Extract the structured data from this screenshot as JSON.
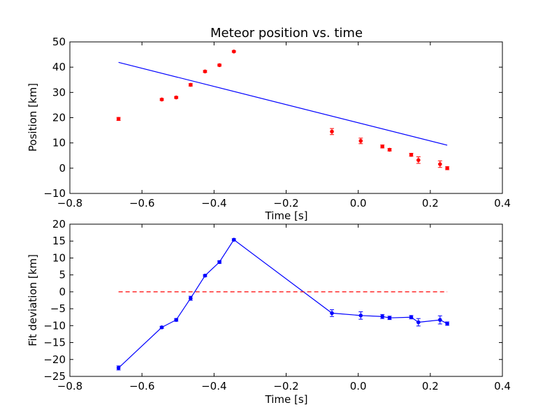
{
  "chart_data": [
    {
      "type": "scatter",
      "title": "Meteor position vs. time",
      "xlabel": "Time [s]",
      "ylabel": "Position [km]",
      "xlim": [
        -0.8,
        0.4
      ],
      "ylim": [
        -10,
        50
      ],
      "xticks": [
        "−0.8",
        "−0.6",
        "−0.4",
        "−0.2",
        "0.0",
        "0.2",
        "0.4"
      ],
      "yticks": [
        "−10",
        "0",
        "10",
        "20",
        "30",
        "40",
        "50"
      ],
      "grid": false,
      "colors": {
        "points": "#ff0000",
        "fit": "#0000ff"
      },
      "series": [
        {
          "style": "points-with-errorbars",
          "x": [
            -0.665,
            -0.545,
            -0.505,
            -0.465,
            -0.425,
            -0.385,
            -0.345,
            -0.073,
            0.007,
            0.067,
            0.087,
            0.147,
            0.167,
            0.227,
            0.247
          ],
          "y": [
            19.5,
            27.2,
            28.0,
            33.0,
            38.3,
            40.8,
            46.2,
            14.5,
            10.8,
            8.6,
            7.3,
            5.3,
            3.2,
            1.6,
            0.0
          ],
          "yerr": [
            0.6,
            0.4,
            0.4,
            0.5,
            0.4,
            0.4,
            0.3,
            1.2,
            1.1,
            0.6,
            0.5,
            0.6,
            1.3,
            1.3,
            0.6
          ]
        },
        {
          "style": "line",
          "x": [
            -0.665,
            0.247
          ],
          "y": [
            41.9,
            9.1
          ]
        }
      ]
    },
    {
      "type": "line",
      "title": "",
      "xlabel": "Time [s]",
      "ylabel": "Fit deviation [km]",
      "xlim": [
        -0.8,
        0.4
      ],
      "ylim": [
        -25,
        20
      ],
      "xticks": [
        "−0.8",
        "−0.6",
        "−0.4",
        "−0.2",
        "0.0",
        "0.2",
        "0.4"
      ],
      "yticks": [
        "−25",
        "−20",
        "−15",
        "−10",
        "−5",
        "0",
        "5",
        "10",
        "15",
        "20"
      ],
      "grid": false,
      "colors": {
        "deviation": "#0000ff",
        "zero": "#ff0000"
      },
      "series": [
        {
          "style": "line-with-errorbars",
          "x": [
            -0.665,
            -0.545,
            -0.505,
            -0.465,
            -0.425,
            -0.385,
            -0.345,
            -0.073,
            0.007,
            0.067,
            0.087,
            0.147,
            0.167,
            0.227,
            0.247
          ],
          "y": [
            -22.5,
            -10.5,
            -8.3,
            -1.9,
            4.8,
            8.8,
            15.4,
            -6.3,
            -7.0,
            -7.3,
            -7.7,
            -7.5,
            -9.0,
            -8.3,
            -9.4
          ],
          "yerr": [
            0.6,
            0.3,
            0.4,
            0.6,
            0.3,
            0.4,
            0.3,
            1.0,
            1.1,
            0.6,
            0.5,
            0.5,
            1.1,
            1.2,
            0.5
          ]
        },
        {
          "style": "dashed",
          "x": [
            -0.665,
            0.247
          ],
          "y": [
            0,
            0
          ]
        }
      ]
    }
  ]
}
